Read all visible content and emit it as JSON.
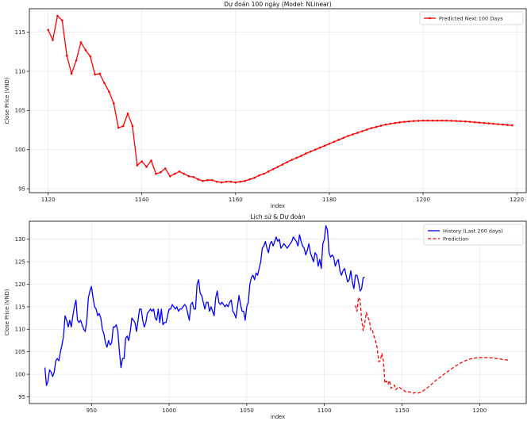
{
  "chart_data": [
    {
      "type": "line",
      "title": "Dự đoán 100 ngày (Model: NLinear)",
      "xlabel": "index",
      "ylabel": "Close Price (VND)",
      "xlim": [
        1116,
        1222
      ],
      "ylim": [
        94.5,
        118
      ],
      "xticks": [
        1120,
        1140,
        1160,
        1180,
        1200,
        1220
      ],
      "yticks": [
        95,
        100,
        105,
        110,
        115
      ],
      "grid": true,
      "legend_position": "top-right",
      "series": [
        {
          "name": "Predicted Next 100 Days",
          "color": "#ff0000",
          "marker": "dot",
          "x": [
            1120,
            1121,
            1122,
            1123,
            1124,
            1125,
            1126,
            1127,
            1128,
            1129,
            1130,
            1131,
            1132,
            1133,
            1134,
            1135,
            1136,
            1137,
            1138,
            1139,
            1140,
            1141,
            1142,
            1143,
            1144,
            1145,
            1146,
            1147,
            1148,
            1149,
            1150,
            1151,
            1152,
            1153,
            1154,
            1155,
            1156,
            1157,
            1158,
            1159,
            1160,
            1161,
            1162,
            1163,
            1164,
            1165,
            1166,
            1167,
            1168,
            1169,
            1170,
            1171,
            1172,
            1173,
            1174,
            1175,
            1176,
            1177,
            1178,
            1179,
            1180,
            1181,
            1182,
            1183,
            1184,
            1185,
            1186,
            1187,
            1188,
            1189,
            1190,
            1191,
            1192,
            1193,
            1194,
            1195,
            1196,
            1197,
            1198,
            1199,
            1200,
            1201,
            1202,
            1203,
            1204,
            1205,
            1206,
            1207,
            1208,
            1209,
            1210,
            1211,
            1212,
            1213,
            1214,
            1215,
            1216,
            1217,
            1218,
            1219
          ],
          "y": [
            115.3,
            114.0,
            117.1,
            116.5,
            112.0,
            109.7,
            111.4,
            113.7,
            112.7,
            111.9,
            109.6,
            109.7,
            108.5,
            107.4,
            105.9,
            102.8,
            103.0,
            104.6,
            103.0,
            98.0,
            98.5,
            97.8,
            98.6,
            96.9,
            97.1,
            97.6,
            96.6,
            96.9,
            97.2,
            96.9,
            96.6,
            96.5,
            96.2,
            96.0,
            96.1,
            96.1,
            95.9,
            95.8,
            95.9,
            95.9,
            95.8,
            95.9,
            96.0,
            96.2,
            96.4,
            96.7,
            96.9,
            97.2,
            97.5,
            97.8,
            98.1,
            98.4,
            98.7,
            98.95,
            99.2,
            99.5,
            99.75,
            100.0,
            100.25,
            100.5,
            100.75,
            101.0,
            101.25,
            101.5,
            101.75,
            101.95,
            102.15,
            102.35,
            102.55,
            102.75,
            102.9,
            103.05,
            103.2,
            103.3,
            103.4,
            103.48,
            103.55,
            103.6,
            103.65,
            103.68,
            103.7,
            103.7,
            103.7,
            103.7,
            103.7,
            103.7,
            103.68,
            103.66,
            103.63,
            103.6,
            103.55,
            103.5,
            103.45,
            103.4,
            103.35,
            103.3,
            103.25,
            103.2,
            103.15,
            103.1
          ]
        }
      ]
    },
    {
      "type": "line",
      "title": "Lịch sử & Dự đoán",
      "xlabel": "index",
      "ylabel": "Close Price (VND)",
      "xlim": [
        910,
        1230
      ],
      "ylim": [
        93.5,
        134
      ],
      "xticks": [
        950,
        1000,
        1050,
        1100,
        1150,
        1200
      ],
      "yticks": [
        95,
        100,
        105,
        110,
        115,
        120,
        125,
        130
      ],
      "grid": true,
      "legend_position": "top-right",
      "series": [
        {
          "name": "History (Last 200 days)",
          "color": "#0000ff",
          "style": "solid",
          "x_start": 920,
          "x_step": 1,
          "y": [
            101.5,
            97.5,
            98.5,
            101,
            100.5,
            99.5,
            100.5,
            103,
            103.5,
            103,
            105,
            106.5,
            108.5,
            113,
            112,
            110.5,
            112,
            110.5,
            113,
            115,
            116.5,
            112,
            111.5,
            112,
            111,
            110,
            109.5,
            112,
            117,
            118.5,
            119.5,
            117,
            115,
            114.5,
            113,
            113.5,
            112.5,
            110,
            109,
            107,
            106,
            107.5,
            106.5,
            107,
            110.5,
            110.5,
            111,
            109.5,
            105,
            101.5,
            103.5,
            103.5,
            108,
            108.5,
            107.5,
            109.5,
            112.5,
            112,
            111.5,
            109.5,
            112,
            114.5,
            114.5,
            112,
            110.5,
            111.5,
            113.5,
            114,
            114.5,
            114,
            114.5,
            112.5,
            112,
            114.5,
            111.5,
            114.5,
            111,
            111.5,
            111.5,
            113,
            114.5,
            114.5,
            115.5,
            115,
            114.5,
            115,
            114,
            114.5,
            114.5,
            115,
            115.5,
            115,
            113.5,
            112,
            115.5,
            116,
            114.5,
            114.5,
            120,
            121,
            118,
            117.5,
            116,
            114.5,
            116,
            116,
            114,
            115,
            114,
            113,
            117,
            118.5,
            116,
            115.5,
            116,
            115.5,
            115,
            115.5,
            115,
            116,
            116.5,
            114,
            113.5,
            112.5,
            115,
            117.5,
            115.5,
            114,
            114,
            112,
            115,
            116,
            120,
            121.5,
            122,
            121,
            122.5,
            122,
            123.5,
            125,
            128,
            128.5,
            129.5,
            128,
            127,
            129,
            129.5,
            128.5,
            129.5,
            130.5,
            129.5,
            130,
            128,
            128.5,
            129,
            128.5,
            128,
            128.5,
            129,
            129.5,
            130.5,
            130,
            129.5,
            128.5,
            131,
            129.5,
            128.5,
            128,
            126.5,
            127.5,
            129,
            127,
            126,
            125,
            127,
            126.5,
            124,
            125.5,
            123.5,
            129,
            130,
            133,
            132,
            127,
            126,
            126.5,
            126,
            124,
            125,
            125.5,
            123,
            122,
            123,
            123.5,
            122,
            120.5,
            121,
            123,
            120.5,
            119,
            122,
            122,
            120.5,
            118.5,
            119,
            121.5,
            121.5
          ]
        },
        {
          "name": "Prediction",
          "color": "#ff0000",
          "style": "dashed",
          "x_start": 1120,
          "x_step": 1,
          "y": [
            115.3,
            114.0,
            117.1,
            116.5,
            112.0,
            109.7,
            111.4,
            113.7,
            112.7,
            111.9,
            109.6,
            109.7,
            108.5,
            107.4,
            105.9,
            102.8,
            103.0,
            104.6,
            103.0,
            98.0,
            98.5,
            97.8,
            98.6,
            96.9,
            97.1,
            97.6,
            96.6,
            96.9,
            97.2,
            96.9,
            96.6,
            96.5,
            96.2,
            96.0,
            96.1,
            96.1,
            95.9,
            95.8,
            95.9,
            95.9,
            95.8,
            95.9,
            96.0,
            96.2,
            96.4,
            96.7,
            96.9,
            97.2,
            97.5,
            97.8,
            98.1,
            98.4,
            98.7,
            98.95,
            99.2,
            99.5,
            99.75,
            100.0,
            100.25,
            100.5,
            100.75,
            101.0,
            101.25,
            101.5,
            101.75,
            101.95,
            102.15,
            102.35,
            102.55,
            102.75,
            102.9,
            103.05,
            103.2,
            103.3,
            103.4,
            103.48,
            103.55,
            103.6,
            103.65,
            103.68,
            103.7,
            103.7,
            103.7,
            103.7,
            103.7,
            103.7,
            103.68,
            103.66,
            103.63,
            103.6,
            103.55,
            103.5,
            103.45,
            103.4,
            103.35,
            103.3,
            103.25,
            103.2,
            103.15,
            103.1
          ]
        }
      ]
    }
  ]
}
